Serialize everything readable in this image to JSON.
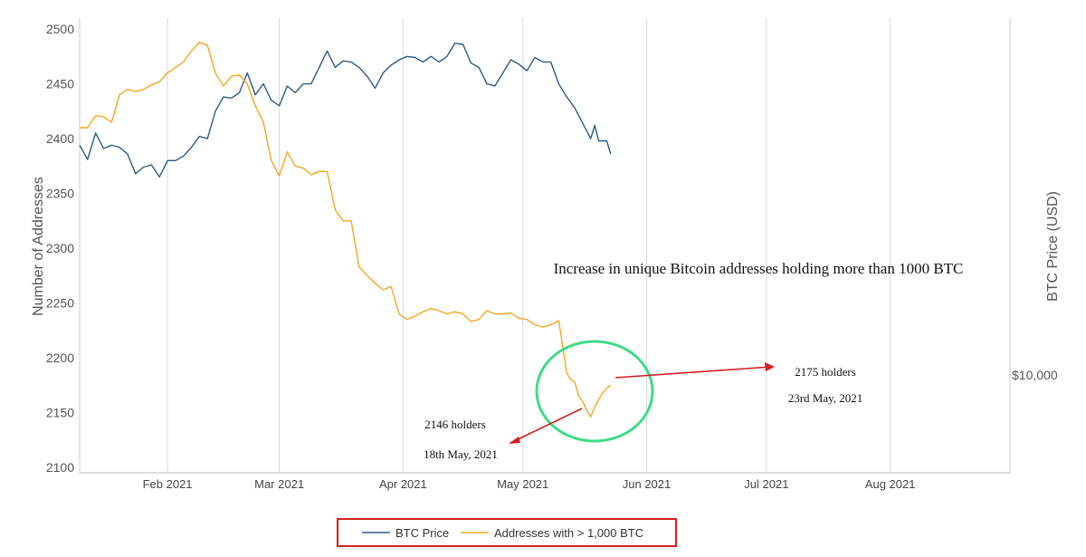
{
  "chart_data": {
    "type": "line",
    "title": "",
    "ylabel_left": "Number of Addresses",
    "ylabel_right": "BTC Price (USD)",
    "right_axis_ticks": [
      "$10,000"
    ],
    "ylim": [
      2095,
      2510
    ],
    "yticks": [
      2100,
      2150,
      2200,
      2250,
      2300,
      2350,
      2400,
      2450,
      2500
    ],
    "x_ticks": [
      "Feb 2021",
      "Mar 2021",
      "Apr 2021",
      "May 2021",
      "Jun 2021",
      "Jul 2021",
      "Aug 2021"
    ],
    "x_tick_dates": [
      "2021-02-01",
      "2021-03-01",
      "2021-04-01",
      "2021-05-01",
      "2021-06-01",
      "2021-07-01",
      "2021-08-01"
    ],
    "xlim": [
      "2021-01-10",
      "2021-08-31"
    ],
    "grid": "vertical",
    "legend_position": "bottom-center",
    "series": [
      {
        "name": "BTC Price",
        "color": "#2f5a85",
        "note": "plotted against the right axis, shown here in the left-axis units of the figure",
        "points": [
          [
            "2021-01-10",
            2394
          ],
          [
            "2021-01-12",
            2381
          ],
          [
            "2021-01-14",
            2405
          ],
          [
            "2021-01-16",
            2391
          ],
          [
            "2021-01-18",
            2394
          ],
          [
            "2021-01-20",
            2392
          ],
          [
            "2021-01-22",
            2386
          ],
          [
            "2021-01-24",
            2368
          ],
          [
            "2021-01-26",
            2374
          ],
          [
            "2021-01-28",
            2376
          ],
          [
            "2021-01-30",
            2365
          ],
          [
            "2021-02-01",
            2380
          ],
          [
            "2021-02-03",
            2380
          ],
          [
            "2021-02-05",
            2384
          ],
          [
            "2021-02-07",
            2392
          ],
          [
            "2021-02-09",
            2402
          ],
          [
            "2021-02-11",
            2400
          ],
          [
            "2021-02-13",
            2425
          ],
          [
            "2021-02-15",
            2438
          ],
          [
            "2021-02-17",
            2437
          ],
          [
            "2021-02-19",
            2442
          ],
          [
            "2021-02-21",
            2460
          ],
          [
            "2021-02-23",
            2440
          ],
          [
            "2021-02-25",
            2450
          ],
          [
            "2021-02-27",
            2435
          ],
          [
            "2021-03-01",
            2430
          ],
          [
            "2021-03-03",
            2448
          ],
          [
            "2021-03-05",
            2442
          ],
          [
            "2021-03-07",
            2450
          ],
          [
            "2021-03-09",
            2450
          ],
          [
            "2021-03-11",
            2465
          ],
          [
            "2021-03-13",
            2480
          ],
          [
            "2021-03-15",
            2465
          ],
          [
            "2021-03-17",
            2471
          ],
          [
            "2021-03-19",
            2470
          ],
          [
            "2021-03-21",
            2465
          ],
          [
            "2021-03-23",
            2457
          ],
          [
            "2021-03-25",
            2446
          ],
          [
            "2021-03-27",
            2460
          ],
          [
            "2021-03-29",
            2467
          ],
          [
            "2021-03-31",
            2472
          ],
          [
            "2021-04-02",
            2475
          ],
          [
            "2021-04-04",
            2474
          ],
          [
            "2021-04-06",
            2470
          ],
          [
            "2021-04-08",
            2475
          ],
          [
            "2021-04-10",
            2470
          ],
          [
            "2021-04-12",
            2475
          ],
          [
            "2021-04-14",
            2487
          ],
          [
            "2021-04-16",
            2486
          ],
          [
            "2021-04-18",
            2469
          ],
          [
            "2021-04-20",
            2465
          ],
          [
            "2021-04-22",
            2450
          ],
          [
            "2021-04-24",
            2448
          ],
          [
            "2021-04-26",
            2460
          ],
          [
            "2021-04-28",
            2472
          ],
          [
            "2021-04-30",
            2468
          ],
          [
            "2021-05-02",
            2462
          ],
          [
            "2021-05-04",
            2474
          ],
          [
            "2021-05-06",
            2470
          ],
          [
            "2021-05-08",
            2470
          ],
          [
            "2021-05-10",
            2450
          ],
          [
            "2021-05-12",
            2438
          ],
          [
            "2021-05-14",
            2428
          ],
          [
            "2021-05-16",
            2414
          ],
          [
            "2021-05-18",
            2400
          ],
          [
            "2021-05-19",
            2412
          ],
          [
            "2021-05-20",
            2398
          ],
          [
            "2021-05-22",
            2398
          ],
          [
            "2021-05-23",
            2386
          ]
        ]
      },
      {
        "name": "Addresses with > 1,000 BTC",
        "color": "#f5a623",
        "points": [
          [
            "2021-01-10",
            2410
          ],
          [
            "2021-01-12",
            2410
          ],
          [
            "2021-01-14",
            2421
          ],
          [
            "2021-01-16",
            2420
          ],
          [
            "2021-01-18",
            2415
          ],
          [
            "2021-01-20",
            2440
          ],
          [
            "2021-01-22",
            2445
          ],
          [
            "2021-01-24",
            2443
          ],
          [
            "2021-01-26",
            2445
          ],
          [
            "2021-01-28",
            2449
          ],
          [
            "2021-01-30",
            2452
          ],
          [
            "2021-02-01",
            2460
          ],
          [
            "2021-02-03",
            2465
          ],
          [
            "2021-02-05",
            2470
          ],
          [
            "2021-02-07",
            2480
          ],
          [
            "2021-02-09",
            2488
          ],
          [
            "2021-02-11",
            2485
          ],
          [
            "2021-02-13",
            2460
          ],
          [
            "2021-02-15",
            2448
          ],
          [
            "2021-02-17",
            2457
          ],
          [
            "2021-02-19",
            2458
          ],
          [
            "2021-02-21",
            2450
          ],
          [
            "2021-02-23",
            2430
          ],
          [
            "2021-02-25",
            2415
          ],
          [
            "2021-02-27",
            2380
          ],
          [
            "2021-03-01",
            2366
          ],
          [
            "2021-03-03",
            2388
          ],
          [
            "2021-03-05",
            2375
          ],
          [
            "2021-03-07",
            2373
          ],
          [
            "2021-03-09",
            2367
          ],
          [
            "2021-03-11",
            2370
          ],
          [
            "2021-03-13",
            2370
          ],
          [
            "2021-03-15",
            2335
          ],
          [
            "2021-03-17",
            2325
          ],
          [
            "2021-03-19",
            2325
          ],
          [
            "2021-03-21",
            2283
          ],
          [
            "2021-03-23",
            2275
          ],
          [
            "2021-03-25",
            2268
          ],
          [
            "2021-03-27",
            2262
          ],
          [
            "2021-03-29",
            2265
          ],
          [
            "2021-03-31",
            2240
          ],
          [
            "2021-04-02",
            2235
          ],
          [
            "2021-04-04",
            2238
          ],
          [
            "2021-04-06",
            2242
          ],
          [
            "2021-04-08",
            2245
          ],
          [
            "2021-04-10",
            2243
          ],
          [
            "2021-04-12",
            2240
          ],
          [
            "2021-04-14",
            2242
          ],
          [
            "2021-04-16",
            2240
          ],
          [
            "2021-04-18",
            2233
          ],
          [
            "2021-04-20",
            2235
          ],
          [
            "2021-04-22",
            2243
          ],
          [
            "2021-04-24",
            2240
          ],
          [
            "2021-04-26",
            2240
          ],
          [
            "2021-04-28",
            2241
          ],
          [
            "2021-04-30",
            2236
          ],
          [
            "2021-05-02",
            2235
          ],
          [
            "2021-05-04",
            2230
          ],
          [
            "2021-05-06",
            2228
          ],
          [
            "2021-05-08",
            2230
          ],
          [
            "2021-05-10",
            2234
          ],
          [
            "2021-05-12",
            2186
          ],
          [
            "2021-05-13",
            2180
          ],
          [
            "2021-05-14",
            2178
          ],
          [
            "2021-05-15",
            2165
          ],
          [
            "2021-05-16",
            2160
          ],
          [
            "2021-05-17",
            2152
          ],
          [
            "2021-05-18",
            2146
          ],
          [
            "2021-05-19",
            2155
          ],
          [
            "2021-05-20",
            2162
          ],
          [
            "2021-05-21",
            2168
          ],
          [
            "2021-05-22",
            2172
          ],
          [
            "2021-05-23",
            2175
          ]
        ]
      }
    ],
    "annotations": [
      {
        "text": "Increase in unique Bitcoin addresses holding more than 1000 BTC",
        "x": "2021-05-10",
        "y": 2288
      },
      {
        "text": "2146 holders",
        "x": "2021-05-02",
        "y": 2126
      },
      {
        "text": "18th May, 2021",
        "x": "2021-05-02",
        "y": 2102
      },
      {
        "text": "2175 holders",
        "x": "2021-06-26",
        "y": 2180
      },
      {
        "text": "23rd May, 2021",
        "x": "2021-06-26",
        "y": 2155
      }
    ]
  }
}
